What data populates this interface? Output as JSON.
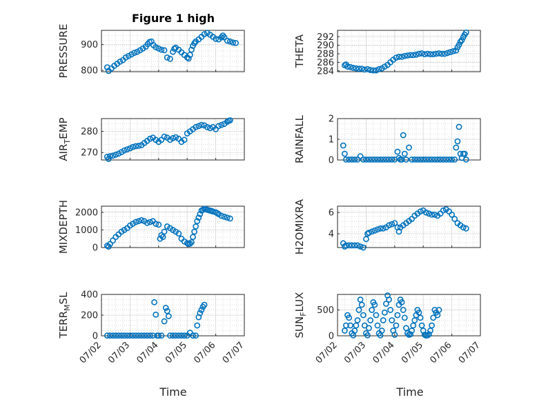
{
  "figure": {
    "title": "Figure 1 high",
    "xlabel": "Time",
    "marker_color": "#0072BD"
  },
  "chart_data": [
    {
      "type": "scatter",
      "ylabel": "PRESSURE",
      "ylabel_sub": "",
      "ylim": [
        795,
        955
      ],
      "yticks": [
        800,
        900
      ],
      "xlim": [
        1.0,
        6.0
      ],
      "x": [
        1.2,
        1.25,
        1.35,
        1.45,
        1.55,
        1.65,
        1.75,
        1.85,
        1.95,
        2.05,
        2.15,
        2.25,
        2.35,
        2.45,
        2.55,
        2.62,
        2.68,
        2.75,
        2.82,
        2.9,
        3.0,
        3.1,
        3.2,
        3.3,
        3.4,
        3.5,
        3.55,
        3.6,
        3.7,
        3.8,
        3.9,
        4.0,
        4.05,
        4.1,
        4.15,
        4.2,
        4.25,
        4.3,
        4.4,
        4.5,
        4.6,
        4.7,
        4.8,
        4.9,
        5.0,
        5.1,
        5.2,
        5.25,
        5.3,
        5.4,
        5.5,
        5.6,
        5.7
      ],
      "y": [
        812,
        798,
        808,
        818,
        826,
        834,
        840,
        850,
        856,
        862,
        868,
        872,
        878,
        885,
        892,
        902,
        910,
        912,
        898,
        890,
        885,
        880,
        878,
        850,
        845,
        872,
        884,
        888,
        880,
        870,
        860,
        850,
        846,
        860,
        880,
        895,
        905,
        912,
        920,
        930,
        940,
        945,
        938,
        930,
        922,
        920,
        928,
        935,
        928,
        915,
        912,
        908,
        906
      ]
    },
    {
      "type": "scatter",
      "ylabel": "THETA",
      "ylabel_sub": "",
      "ylim": [
        283.8,
        293.5
      ],
      "yticks": [
        284,
        286,
        288,
        290,
        292
      ],
      "xlim": [
        1.0,
        6.0
      ],
      "x": [
        1.25,
        1.3,
        1.35,
        1.45,
        1.55,
        1.65,
        1.75,
        1.85,
        1.95,
        2.05,
        2.15,
        2.25,
        2.35,
        2.45,
        2.55,
        2.65,
        2.75,
        2.85,
        2.95,
        3.05,
        3.15,
        3.25,
        3.35,
        3.45,
        3.55,
        3.65,
        3.75,
        3.85,
        3.95,
        4.05,
        4.15,
        4.25,
        4.35,
        4.45,
        4.55,
        4.65,
        4.75,
        4.85,
        4.95,
        5.05,
        5.15,
        5.2,
        5.25,
        5.3,
        5.35,
        5.4,
        5.45,
        5.5
      ],
      "y": [
        285.3,
        285.5,
        285.0,
        284.9,
        284.7,
        284.6,
        284.5,
        284.5,
        284.3,
        284.4,
        284.2,
        284.1,
        284.1,
        284.4,
        284.6,
        285.0,
        285.4,
        286.0,
        286.6,
        287.1,
        287.3,
        287.3,
        287.5,
        287.6,
        287.7,
        287.7,
        287.8,
        288.0,
        288.1,
        287.9,
        288.0,
        287.9,
        287.9,
        288.0,
        288.1,
        288.0,
        288.0,
        288.2,
        288.4,
        288.6,
        288.8,
        289.5,
        290.1,
        290.8,
        291.2,
        291.9,
        292.5,
        293.0
      ]
    },
    {
      "type": "scatter",
      "ylabel": "AIR",
      "ylabel_sub": "T",
      "ylabel_tail": "EMP",
      "ylim": [
        266.5,
        286
      ],
      "yticks": [
        270,
        280
      ],
      "xlim": [
        1.0,
        6.0
      ],
      "x": [
        1.2,
        1.25,
        1.3,
        1.4,
        1.5,
        1.6,
        1.7,
        1.8,
        1.9,
        2.0,
        2.1,
        2.2,
        2.3,
        2.4,
        2.5,
        2.6,
        2.7,
        2.8,
        2.9,
        3.0,
        3.1,
        3.2,
        3.3,
        3.4,
        3.5,
        3.6,
        3.7,
        3.8,
        3.9,
        4.0,
        4.1,
        4.2,
        4.3,
        4.4,
        4.5,
        4.6,
        4.7,
        4.8,
        4.9,
        5.0,
        5.1,
        5.2,
        5.3,
        5.4,
        5.45,
        5.5
      ],
      "y": [
        268.0,
        267.0,
        268.3,
        268.5,
        269.0,
        269.5,
        270.2,
        271.0,
        271.5,
        272.0,
        272.6,
        273.0,
        273.2,
        273.5,
        274.5,
        275.5,
        276.5,
        277.0,
        276.0,
        275.0,
        276.0,
        277.5,
        277.0,
        276.0,
        276.8,
        277.2,
        276.5,
        275.0,
        276.0,
        279.0,
        280.0,
        281.0,
        282.0,
        282.5,
        283.0,
        282.8,
        282.0,
        281.5,
        282.0,
        281.0,
        282.5,
        283.0,
        283.5,
        284.5,
        285.0,
        285.2
      ]
    },
    {
      "type": "scatter",
      "ylabel": "RAINFALL",
      "ylabel_sub": "",
      "ylim": [
        0,
        2
      ],
      "yticks": [
        0,
        1,
        2
      ],
      "xlim": [
        1.0,
        6.0
      ],
      "x": [
        1.2,
        1.25,
        1.3,
        1.4,
        1.5,
        1.6,
        1.7,
        1.8,
        1.9,
        2.0,
        2.1,
        2.2,
        2.3,
        2.4,
        2.5,
        2.6,
        2.7,
        2.8,
        2.9,
        3.0,
        3.1,
        3.15,
        3.2,
        3.25,
        3.3,
        3.35,
        3.4,
        3.5,
        3.6,
        3.7,
        3.8,
        3.9,
        4.0,
        4.1,
        4.2,
        4.3,
        4.4,
        4.5,
        4.6,
        4.7,
        4.8,
        4.9,
        5.0,
        5.1,
        5.15,
        5.2,
        5.25,
        5.3,
        5.35,
        5.4,
        5.45,
        5.5
      ],
      "y": [
        0.7,
        0.3,
        0.02,
        0.02,
        0.02,
        0.02,
        0.02,
        0.18,
        0.02,
        0.02,
        0.02,
        0.02,
        0.02,
        0.02,
        0.02,
        0.02,
        0.02,
        0.02,
        0.02,
        0.02,
        0.4,
        0.1,
        0.02,
        0.02,
        1.2,
        0.3,
        0.02,
        0.6,
        0.02,
        0.02,
        0.02,
        0.02,
        0.02,
        0.02,
        0.02,
        0.02,
        0.02,
        0.02,
        0.02,
        0.02,
        0.02,
        0.02,
        0.02,
        0.02,
        0.6,
        0.9,
        1.6,
        0.3,
        0.1,
        0.3,
        0.3,
        0.02
      ]
    },
    {
      "type": "scatter",
      "ylabel": "MIXDEPTH",
      "ylabel_sub": "",
      "ylim": [
        0,
        2350
      ],
      "yticks": [
        0,
        1000,
        2000
      ],
      "xlim": [
        1.0,
        6.0
      ],
      "x": [
        1.2,
        1.25,
        1.3,
        1.4,
        1.5,
        1.6,
        1.7,
        1.8,
        1.9,
        2.0,
        2.1,
        2.2,
        2.3,
        2.4,
        2.5,
        2.6,
        2.7,
        2.8,
        2.9,
        3.0,
        3.05,
        3.1,
        3.15,
        3.2,
        3.3,
        3.4,
        3.5,
        3.6,
        3.7,
        3.8,
        3.9,
        4.0,
        4.05,
        4.1,
        4.15,
        4.2,
        4.25,
        4.3,
        4.35,
        4.4,
        4.45,
        4.5,
        4.55,
        4.6,
        4.65,
        4.7,
        4.75,
        4.8,
        4.85,
        4.9,
        5.0,
        5.05,
        5.1,
        5.2,
        5.3,
        5.4,
        5.5
      ],
      "y": [
        100,
        50,
        200,
        400,
        600,
        750,
        900,
        1000,
        1100,
        1250,
        1350,
        1450,
        1500,
        1550,
        1500,
        1400,
        1450,
        1500,
        1350,
        1300,
        500,
        700,
        600,
        900,
        1200,
        1100,
        1000,
        900,
        800,
        500,
        350,
        250,
        200,
        220,
        300,
        600,
        900,
        1200,
        1500,
        1700,
        1900,
        2100,
        2150,
        2200,
        2180,
        2150,
        2120,
        2100,
        2080,
        2050,
        2000,
        1950,
        1900,
        1800,
        1750,
        1700,
        1650
      ]
    },
    {
      "type": "scatter",
      "ylabel": "H2OMIXRA",
      "ylabel_sub": "",
      "ylim": [
        2.7,
        6.6
      ],
      "yticks": [
        4,
        6
      ],
      "xlim": [
        1.0,
        6.0
      ],
      "x": [
        1.2,
        1.25,
        1.3,
        1.4,
        1.5,
        1.6,
        1.7,
        1.8,
        1.9,
        2.0,
        2.05,
        2.1,
        2.2,
        2.3,
        2.4,
        2.5,
        2.6,
        2.7,
        2.8,
        2.9,
        3.0,
        3.1,
        3.15,
        3.2,
        3.3,
        3.4,
        3.5,
        3.6,
        3.7,
        3.8,
        3.9,
        4.0,
        4.1,
        4.2,
        4.3,
        4.4,
        4.5,
        4.6,
        4.7,
        4.8,
        4.9,
        5.0,
        5.1,
        5.2,
        5.3,
        5.4,
        5.5
      ],
      "y": [
        3.1,
        2.8,
        2.9,
        2.9,
        2.9,
        2.9,
        2.9,
        2.8,
        2.7,
        3.5,
        4.0,
        4.1,
        4.2,
        4.3,
        4.4,
        4.5,
        4.5,
        4.6,
        4.8,
        4.9,
        5.0,
        4.6,
        4.2,
        4.6,
        4.8,
        5.0,
        5.2,
        5.4,
        5.7,
        5.9,
        6.1,
        6.2,
        6.0,
        5.9,
        5.8,
        5.8,
        5.7,
        5.9,
        6.2,
        6.3,
        6.1,
        5.8,
        5.4,
        5.0,
        4.8,
        4.6,
        4.5
      ]
    },
    {
      "type": "scatter",
      "ylabel": "TERR",
      "ylabel_sub": "M",
      "ylabel_tail": "SL",
      "ylim": [
        0,
        400
      ],
      "yticks": [
        0,
        200,
        400
      ],
      "xlim": [
        1.0,
        6.0
      ],
      "x": [
        1.2,
        1.3,
        1.4,
        1.5,
        1.6,
        1.7,
        1.8,
        1.9,
        2.0,
        2.1,
        2.2,
        2.3,
        2.4,
        2.5,
        2.6,
        2.7,
        2.8,
        2.85,
        2.9,
        2.95,
        3.0,
        3.1,
        3.2,
        3.25,
        3.3,
        3.35,
        3.4,
        3.5,
        3.6,
        3.7,
        3.8,
        3.9,
        4.0,
        4.1,
        4.2,
        4.3,
        4.35,
        4.4,
        4.45,
        4.5,
        4.55,
        4.6
      ],
      "y": [
        2,
        2,
        2,
        2,
        2,
        2,
        2,
        2,
        2,
        2,
        2,
        2,
        2,
        2,
        2,
        2,
        2,
        325,
        205,
        2,
        2,
        2,
        140,
        270,
        240,
        190,
        2,
        2,
        2,
        2,
        2,
        2,
        2,
        30,
        2,
        2,
        100,
        180,
        220,
        250,
        280,
        300
      ]
    },
    {
      "type": "scatter",
      "ylabel": "SUN",
      "ylabel_sub": "F",
      "ylabel_tail": "LUX",
      "ylim": [
        0,
        800
      ],
      "yticks": [
        0,
        500
      ],
      "xlim": [
        1.0,
        6.0
      ],
      "x": [
        1.25,
        1.3,
        1.35,
        1.4,
        1.45,
        1.5,
        1.55,
        1.6,
        1.65,
        1.7,
        1.75,
        1.8,
        1.85,
        1.9,
        1.95,
        2.0,
        2.05,
        2.1,
        2.15,
        2.2,
        2.25,
        2.3,
        2.35,
        2.4,
        2.45,
        2.5,
        2.55,
        2.6,
        2.65,
        2.7,
        2.75,
        2.8,
        2.85,
        2.9,
        2.95,
        3.0,
        3.05,
        3.1,
        3.15,
        3.2,
        3.25,
        3.3,
        3.35,
        3.4,
        3.45,
        3.5,
        3.55,
        3.6,
        3.65,
        3.7,
        3.75,
        3.8,
        3.85,
        3.9,
        3.95,
        4.0,
        4.05,
        4.1,
        4.15,
        4.2,
        4.25,
        4.3,
        4.35,
        4.4,
        4.45,
        4.5,
        4.55
      ],
      "y": [
        100,
        200,
        400,
        350,
        200,
        50,
        10,
        100,
        200,
        300,
        500,
        700,
        600,
        400,
        200,
        50,
        10,
        150,
        300,
        500,
        650,
        600,
        400,
        200,
        50,
        10,
        100,
        300,
        450,
        620,
        780,
        700,
        500,
        300,
        100,
        20,
        200,
        400,
        600,
        700,
        650,
        500,
        350,
        150,
        50,
        20,
        30,
        100,
        200,
        300,
        400,
        500,
        450,
        350,
        200,
        100,
        20,
        5,
        10,
        30,
        100,
        200,
        350,
        500,
        450,
        400,
        500
      ]
    }
  ]
}
